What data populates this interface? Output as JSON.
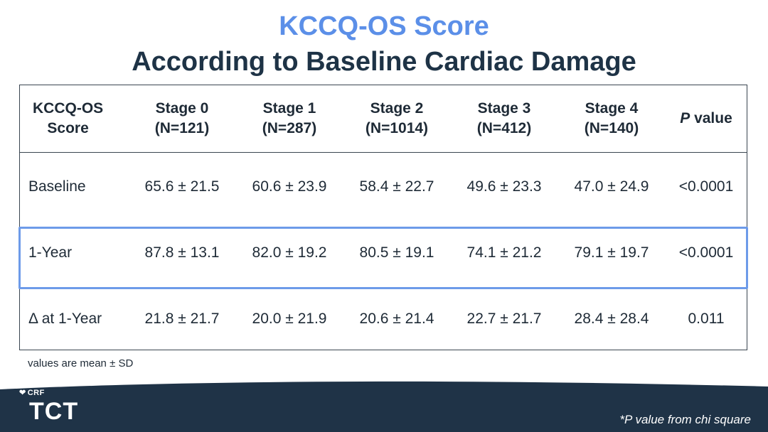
{
  "title": {
    "line1": "KCCQ-OS Score",
    "line2": "According to Baseline Cardiac Damage"
  },
  "table": {
    "headers": [
      {
        "line1": "KCCQ-OS",
        "line2": "Score"
      },
      {
        "line1": "Stage 0",
        "line2": "(N=121)"
      },
      {
        "line1": "Stage 1",
        "line2": "(N=287)"
      },
      {
        "line1": "Stage 2",
        "line2": "(N=1014)"
      },
      {
        "line1": "Stage 3",
        "line2": "(N=412)"
      },
      {
        "line1": "Stage 4",
        "line2": "(N=140)"
      },
      {
        "italic": "P",
        "rest": " value"
      }
    ],
    "rows": [
      {
        "label": "Baseline",
        "values": [
          "65.6 ± 21.5",
          "60.6 ± 23.9",
          "58.4 ± 22.7",
          "49.6 ± 23.3",
          "47.0 ± 24.9"
        ],
        "p": "<0.0001"
      },
      {
        "label": "1-Year",
        "values": [
          "87.8 ± 13.1",
          "82.0 ± 19.2",
          "80.5 ± 19.1",
          "74.1 ± 21.2",
          "79.1 ± 19.7"
        ],
        "p": "<0.0001"
      },
      {
        "label": "Δ at 1-Year",
        "values": [
          "21.8 ± 21.7",
          "20.0 ± 21.9",
          "20.6 ± 21.4",
          "22.7 ± 21.7",
          "28.4 ± 28.4"
        ],
        "p": "0.011"
      }
    ],
    "highlighted_row": "1-Year"
  },
  "footnotes": {
    "left": "values are mean ± SD",
    "right": "*P value from chi square"
  },
  "logo": {
    "org": "CRF",
    "name": "TCT"
  },
  "colors": {
    "title_accent": "#5b8fe8",
    "title_dark": "#1e3346",
    "highlight_border": "#6d9be9",
    "footer_bg": "#1f3347"
  }
}
